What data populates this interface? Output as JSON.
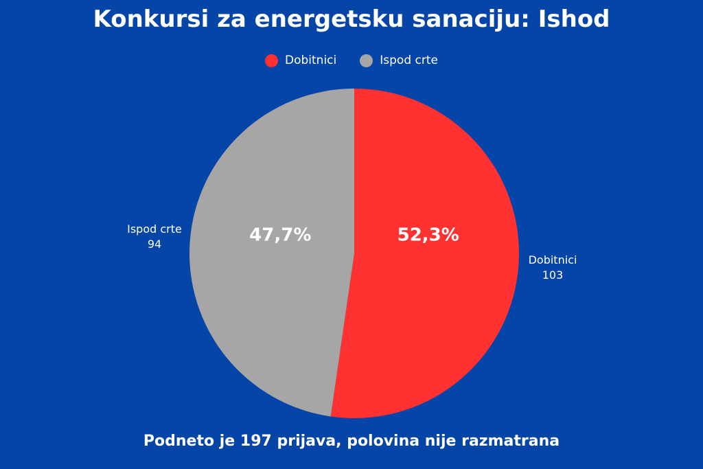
{
  "colors": {
    "background": "#0645a8",
    "dobitnici": "#ff3131",
    "ispod_crte": "#a6a6a6"
  },
  "chart_data": {
    "type": "pie",
    "title": "Konkursi za energetsku sanaciju: Ishod",
    "subtitle": "Podneto je 197 prijava, polovina nije razmatrana",
    "legend_position": "top-center",
    "slices": [
      {
        "label": "Dobitnici",
        "value": 103,
        "percent_label": "52,3%",
        "value_label": "103",
        "color": "#ff3131"
      },
      {
        "label": "Ispod crte",
        "value": 94,
        "percent_label": "47,7%",
        "value_label": "94",
        "color": "#a6a6a6"
      }
    ]
  }
}
